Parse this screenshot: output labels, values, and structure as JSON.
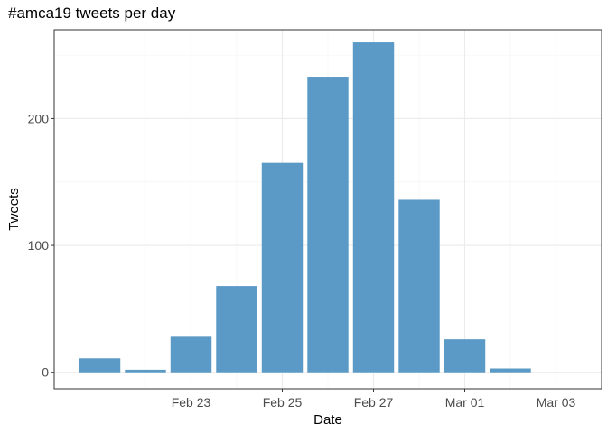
{
  "chart_data": {
    "type": "bar",
    "title": "#amca19 tweets per day",
    "xlabel": "Date",
    "ylabel": "Tweets",
    "dates": [
      "2019-02-21",
      "2019-02-22",
      "2019-02-23",
      "2019-02-24",
      "2019-02-25",
      "2019-02-26",
      "2019-02-27",
      "2019-02-28",
      "2019-03-01",
      "2019-03-02"
    ],
    "values": [
      11,
      2,
      28,
      68,
      165,
      233,
      260,
      136,
      26,
      3
    ],
    "x_ticks": [
      {
        "date": "2019-02-23",
        "label": "Feb 23"
      },
      {
        "date": "2019-02-25",
        "label": "Feb 25"
      },
      {
        "date": "2019-02-27",
        "label": "Feb 27"
      },
      {
        "date": "2019-03-01",
        "label": "Mar 01"
      },
      {
        "date": "2019-03-03",
        "label": "Mar 03"
      }
    ],
    "y_ticks": [
      0,
      100,
      200
    ],
    "xlim": [
      "2019-02-20",
      "2019-03-04"
    ],
    "ylim": [
      -13,
      270
    ],
    "grid": true,
    "bar_color": "#5b9ac6",
    "legend": "none"
  }
}
